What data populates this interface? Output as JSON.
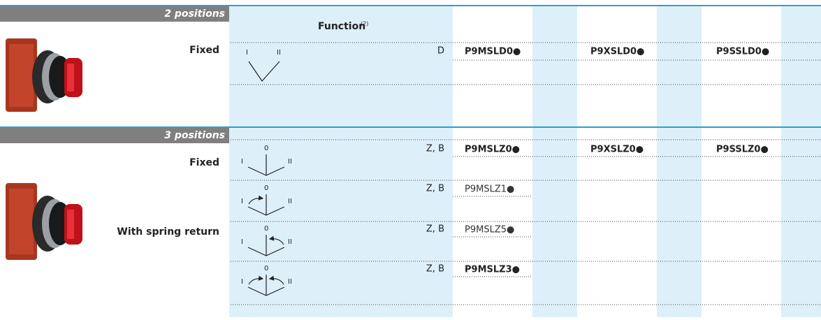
{
  "sections": [
    {
      "header": "2 positions",
      "function_header": {
        "label": "Function",
        "note": "(2)"
      },
      "rows": [
        {
          "label": "Fixed",
          "diagram": [
            "I",
            "II"
          ],
          "function": "D",
          "codes": [
            "P9MSLD0●",
            "P9XSLD0●",
            "P9SSLD0●"
          ]
        }
      ]
    },
    {
      "header": "3 positions",
      "group_label": "With spring return",
      "rows": [
        {
          "label": "Fixed",
          "diagram": [
            "0",
            "I",
            "II"
          ],
          "function": "Z, B",
          "codes": [
            "P9MSLZ0●",
            "P9XSLZ0●",
            "P9SSLZ0●"
          ]
        },
        {
          "diagram": [
            "0",
            "I",
            "II"
          ],
          "function": "Z, B",
          "codes": [
            "P9MSLZ1●"
          ]
        },
        {
          "diagram": [
            "0",
            "I",
            "II"
          ],
          "function": "Z, B",
          "codes": [
            "P9MSLZ5●"
          ]
        },
        {
          "diagram": [
            "0",
            "I",
            "II"
          ],
          "function": "Z, B",
          "codes": [
            "P9MSLZ3●"
          ]
        }
      ]
    }
  ]
}
